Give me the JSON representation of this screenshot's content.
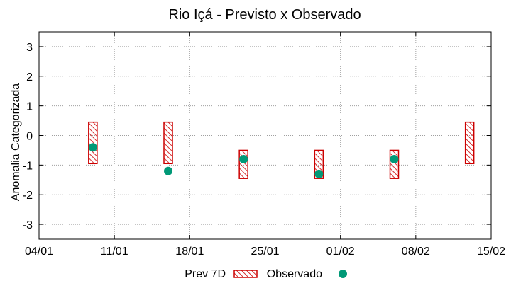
{
  "chart_data": {
    "type": "scatter",
    "title": "Rio Içá - Previsto x Observado",
    "xlabel": "",
    "ylabel": "Anomalia Categorizada",
    "ylim": [
      -3.5,
      3.5
    ],
    "yticks": [
      3,
      2,
      1,
      0,
      -1,
      -2,
      -3
    ],
    "xlim_days": [
      0,
      42
    ],
    "xticks": [
      {
        "label": "04/01",
        "day": 0
      },
      {
        "label": "11/01",
        "day": 7
      },
      {
        "label": "18/01",
        "day": 14
      },
      {
        "label": "25/01",
        "day": 21
      },
      {
        "label": "01/02",
        "day": 28
      },
      {
        "label": "08/02",
        "day": 35
      },
      {
        "label": "15/02",
        "day": 42
      }
    ],
    "grid": true,
    "series": [
      {
        "name": "Prev 7D",
        "kind": "range-box",
        "color": "#cc0000",
        "points": [
          {
            "day": 5,
            "low": -0.95,
            "high": 0.45
          },
          {
            "day": 12,
            "low": -0.95,
            "high": 0.45
          },
          {
            "day": 19,
            "low": -1.45,
            "high": -0.5
          },
          {
            "day": 26,
            "low": -1.45,
            "high": -0.5
          },
          {
            "day": 33,
            "low": -1.45,
            "high": -0.5
          },
          {
            "day": 40,
            "low": -0.95,
            "high": 0.45
          }
        ]
      },
      {
        "name": "Observado",
        "kind": "point",
        "color": "#009977",
        "points": [
          {
            "day": 5,
            "value": -0.4
          },
          {
            "day": 12,
            "value": -1.2
          },
          {
            "day": 19,
            "value": -0.8
          },
          {
            "day": 26,
            "value": -1.3
          },
          {
            "day": 33,
            "value": -0.8
          }
        ]
      }
    ],
    "legend": {
      "placement": "bottom-center",
      "items": [
        {
          "label": "Prev 7D"
        },
        {
          "label": "Observado"
        }
      ]
    }
  }
}
